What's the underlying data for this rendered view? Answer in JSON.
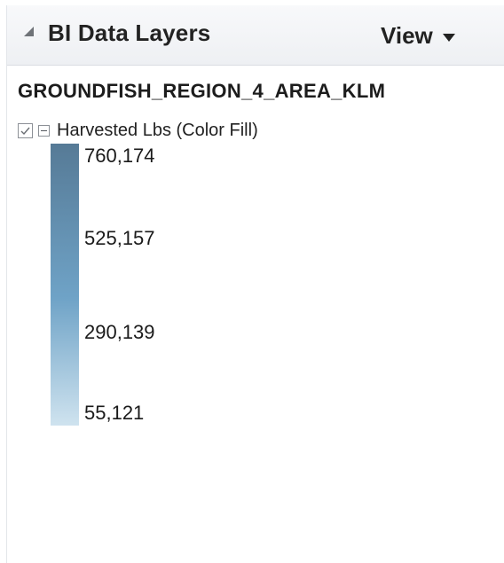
{
  "panel": {
    "title": "BI Data Layers",
    "view_menu_label": "View"
  },
  "layer": {
    "name": "GROUNDFISH_REGION_4_AREA_KLM",
    "checked": true,
    "expanded": true,
    "measure_label": "Harvested Lbs (Color Fill)"
  },
  "legend": {
    "values": [
      "760,174",
      "525,157",
      "290,139",
      "55,121"
    ],
    "color_max": "#567a96",
    "color_mid": "#6fa3c7",
    "color_min": "#cfe3ef"
  },
  "icons": {
    "collapse": "collapse-triangle-icon",
    "view_dropdown": "chevron-down-icon",
    "checkbox": "checkbox-checked-icon",
    "collapse_node": "minus-box-icon"
  }
}
